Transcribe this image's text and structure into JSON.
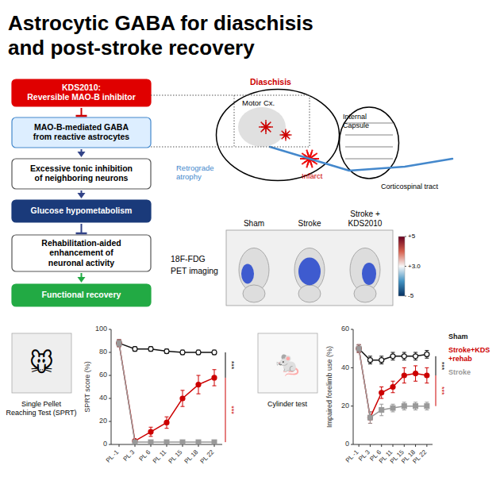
{
  "title": "Astrocytic GABA for diaschisis\nand post-stroke recovery",
  "diagram": {
    "boxes": [
      {
        "text": "KDS2010:\nReversible MAO-B inhibitor",
        "fill": "#e00000",
        "text_color": "white"
      },
      {
        "text": "MAO-B-mediated GABA\nfrom reactive astrocytes",
        "fill": "#ddeeff",
        "edge": "#4488cc",
        "text_color": "black"
      },
      {
        "text": "Excessive tonic inhibition\nof neighboring neurons",
        "fill": "#ffffff",
        "edge": "#555555",
        "text_color": "black"
      },
      {
        "text": "Glucose hypometabolism",
        "fill": "#1a3a7a",
        "text_color": "white"
      },
      {
        "text": "Rehabilitation-aided\nenhancement of\nneuronal activity",
        "fill": "#ffffff",
        "edge": "#555555",
        "text_color": "black"
      },
      {
        "text": "Functional recovery",
        "fill": "#22aa44",
        "text_color": "white"
      }
    ],
    "arrows": [
      {
        "kind": "inhibit",
        "color": "#cc0000"
      },
      {
        "kind": "activate",
        "color": "#334488"
      },
      {
        "kind": "activate",
        "color": "#334488"
      },
      {
        "kind": "inhibit",
        "color": "#334488"
      },
      {
        "kind": "activate",
        "color": "#22aa44"
      }
    ],
    "brain_labels": [
      {
        "text": "Diaschisis",
        "color": "#cc0000"
      },
      {
        "text": "Motor Cx.",
        "color": "black"
      },
      {
        "text": "Retrograde\natrophy",
        "color": "#4488cc"
      },
      {
        "text": "Infarct",
        "color": "#cc0000"
      },
      {
        "text": "Internal\nCapsule",
        "color": "black"
      },
      {
        "text": "Corticospinal tract",
        "color": "black"
      }
    ],
    "pet": {
      "label_18f": "18F-FDG",
      "label_pet": "PET imaging",
      "groups": [
        "Sham",
        "Stroke",
        "Stroke +\nKDS2010"
      ],
      "colorbar_labels": [
        "+5",
        "+3.0",
        "-5"
      ]
    },
    "tests": [
      "Single Pellet\nReaching Test (SPRT)",
      "Cylinder test"
    ],
    "icons": [
      "🐭",
      "🐁"
    ]
  },
  "chart_data": [
    {
      "type": "line",
      "y_label": "SPRT score (%)",
      "categories": [
        "PL -1",
        "PL 3",
        "PL 6",
        "PL 11",
        "PL 15",
        "PL 18",
        "PL 22"
      ],
      "ylim": [
        0,
        100
      ],
      "yticks": [
        0,
        20,
        40,
        60,
        80,
        100
      ],
      "grid": false,
      "series": [
        {
          "color": "#111111",
          "marker": "circle-open",
          "values": [
            88,
            83,
            83,
            81,
            80,
            80,
            80
          ],
          "errors": [
            3,
            2,
            2,
            2,
            2,
            2,
            2
          ]
        },
        {
          "color": "#cc0000",
          "marker": "circle",
          "values": [
            88,
            3,
            11,
            19,
            40,
            52,
            58
          ],
          "errors": [
            3,
            1,
            4,
            5,
            7,
            8,
            7
          ]
        },
        {
          "color": "#999999",
          "marker": "square",
          "values": [
            88,
            2,
            2,
            2,
            2,
            2,
            2
          ],
          "errors": [
            3,
            1,
            1,
            1,
            1,
            1,
            1
          ]
        }
      ],
      "annotations": [
        {
          "text": "***",
          "color": "#cc0000",
          "from": 2,
          "to": 58
        },
        {
          "text": "***",
          "color": "black",
          "from": 58,
          "to": 80
        }
      ]
    },
    {
      "type": "line",
      "y_label": "Impaired forelimb use (%)",
      "categories": [
        "PL -1",
        "PL 3",
        "PL 6",
        "PL 11",
        "PL 15",
        "PL 18",
        "PL 22"
      ],
      "ylim": [
        0,
        60
      ],
      "yticks": [
        0,
        20,
        40,
        60
      ],
      "grid": false,
      "legend": "right",
      "series": [
        {
          "name": "Sham",
          "color": "#111111",
          "marker": "circle-open",
          "values": [
            50,
            44,
            44,
            46,
            46,
            46,
            47
          ],
          "errors": [
            2,
            2,
            2,
            2,
            2,
            2,
            2
          ]
        },
        {
          "name": "Stroke+KDS\n+rehab",
          "color": "#cc0000",
          "marker": "circle",
          "values": [
            50,
            14,
            27,
            30,
            36,
            37,
            36
          ],
          "errors": [
            2,
            3,
            3,
            3,
            4,
            4,
            4
          ]
        },
        {
          "name": "Stroke",
          "color": "#999999",
          "marker": "square",
          "values": [
            50,
            14,
            18,
            19,
            20,
            20,
            20
          ],
          "errors": [
            2,
            3,
            3,
            2,
            2,
            2,
            2
          ]
        }
      ],
      "annotations": [
        {
          "text": "***",
          "color": "#cc0000",
          "from": 20,
          "to": 36
        },
        {
          "text": "***",
          "color": "black",
          "from": 36,
          "to": 46
        }
      ]
    }
  ]
}
